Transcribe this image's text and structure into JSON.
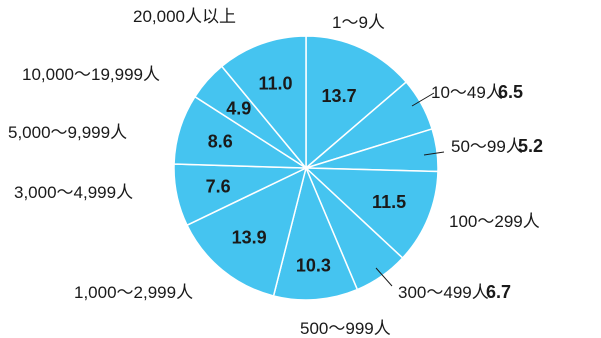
{
  "chart_data": {
    "type": "pie",
    "title": "",
    "colors": {
      "slice": "#45c4f0",
      "border": "#ffffff",
      "text": "#1a1a1a"
    },
    "slices": [
      {
        "label": "1～9人",
        "value": 13.7,
        "value_text": "13.7"
      },
      {
        "label": "10～49人",
        "value": 6.5,
        "value_text": "6.5"
      },
      {
        "label": "50～99人",
        "value": 5.2,
        "value_text": "5.2"
      },
      {
        "label": "100～299人",
        "value": 11.5,
        "value_text": "11.5"
      },
      {
        "label": "300～499人",
        "value": 6.7,
        "value_text": "6.7"
      },
      {
        "label": "500～999人",
        "value": 10.3,
        "value_text": "10.3"
      },
      {
        "label": "1,000～2,999人",
        "value": 13.9,
        "value_text": "13.9"
      },
      {
        "label": "3,000～4,999人",
        "value": 7.6,
        "value_text": "7.6"
      },
      {
        "label": "5,000～9,999人",
        "value": 8.6,
        "value_text": "8.6"
      },
      {
        "label": "10,000～19,999人",
        "value": 4.9,
        "value_text": "4.9"
      },
      {
        "label": "20,000人以上",
        "value": 11.0,
        "value_text": "11.0"
      }
    ]
  }
}
